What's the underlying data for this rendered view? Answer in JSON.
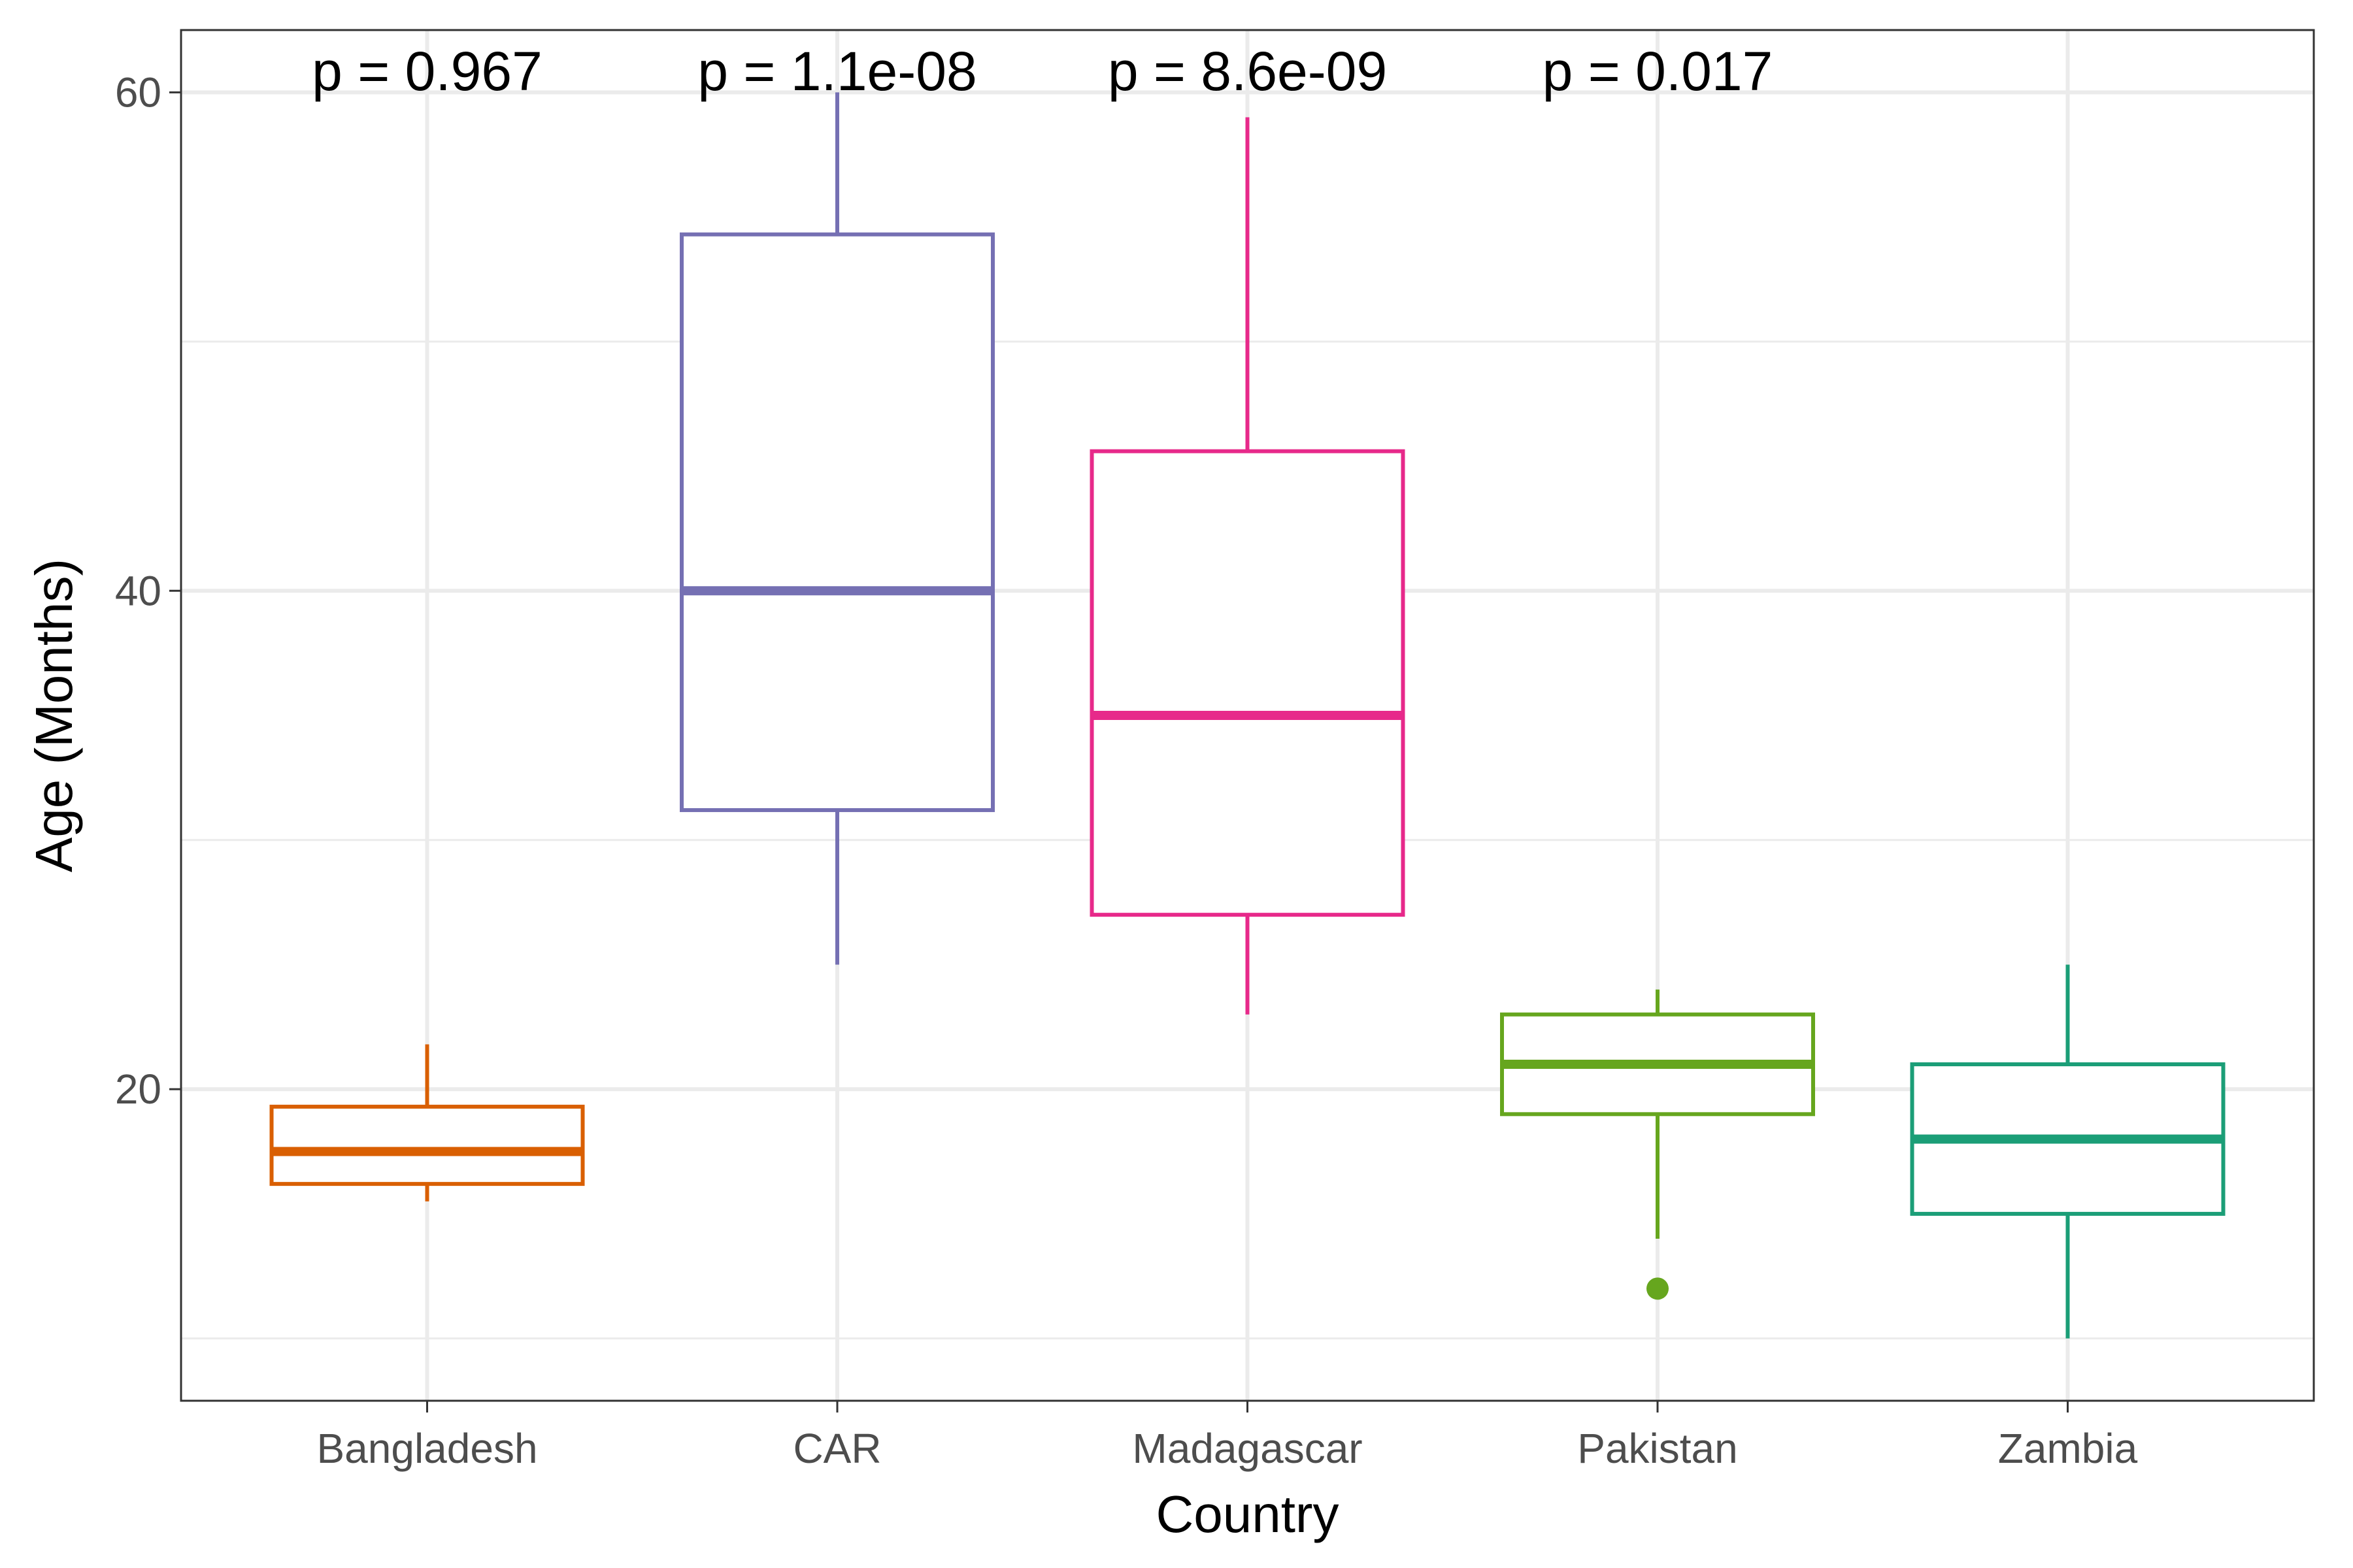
{
  "chart_data": {
    "type": "boxplot",
    "xlabel": "Country",
    "ylabel": "Age (Months)",
    "ylim": [
      7.5,
      62.5
    ],
    "y_major_ticks": [
      20,
      40,
      60
    ],
    "y_minor_ticks": [
      10,
      30,
      50
    ],
    "grid": true,
    "theme": "bw",
    "categories": [
      "Bangladesh",
      "CAR",
      "Madagascar",
      "Pakistan",
      "Zambia"
    ],
    "colors": [
      "#d95f02",
      "#7570b3",
      "#e7298a",
      "#66a61e",
      "#1b9e77"
    ],
    "series": [
      {
        "name": "Bangladesh",
        "whisker_low": 15.5,
        "q1": 16.2,
        "median": 17.5,
        "q3": 19.3,
        "whisker_high": 21.8,
        "outliers": []
      },
      {
        "name": "CAR",
        "whisker_low": 25.0,
        "q1": 31.2,
        "median": 40.0,
        "q3": 54.3,
        "whisker_high": 60.0,
        "outliers": []
      },
      {
        "name": "Madagascar",
        "whisker_low": 23.0,
        "q1": 27.0,
        "median": 35.0,
        "q3": 45.6,
        "whisker_high": 59.0,
        "outliers": []
      },
      {
        "name": "Pakistan",
        "whisker_low": 14.0,
        "q1": 19.0,
        "median": 21.0,
        "q3": 23.0,
        "whisker_high": 24.0,
        "outliers": [
          12.0
        ]
      },
      {
        "name": "Zambia",
        "whisker_low": 10.0,
        "q1": 15.0,
        "median": 18.0,
        "q3": 21.0,
        "whisker_high": 25.0,
        "outliers": []
      }
    ],
    "annotations": [
      "p = 0.967",
      "p = 1.1e-08",
      "p = 8.6e-09",
      "p = 0.017"
    ]
  }
}
